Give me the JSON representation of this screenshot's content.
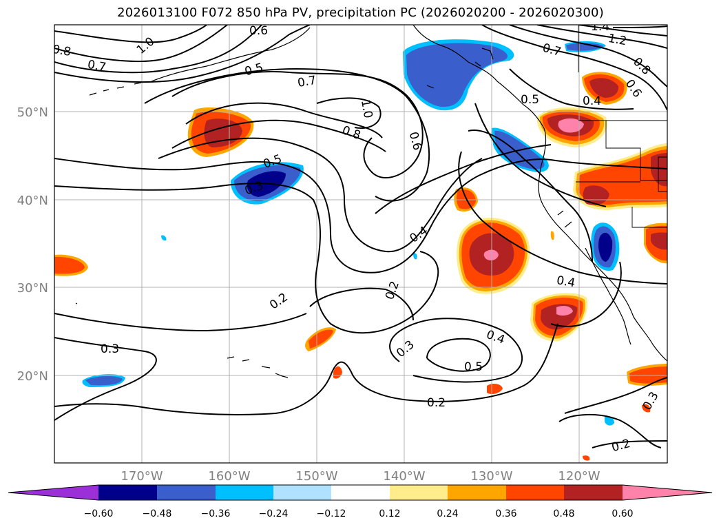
{
  "title": "2026013100 F072 850 hPa PV, precipitation PC (2026020200 - 2026020300)",
  "colors": {
    "purple": "#9b30d9",
    "navy": "#00008b",
    "mid_blue": "#3a5fcd",
    "sky_blue": "#00bfff",
    "light_blue": "#b0e2ff",
    "white": "#ffffff",
    "light_yellow": "#ffec8b",
    "orange": "#ffa500",
    "orange_red": "#ff4500",
    "firebrick": "#b22222",
    "pink": "#ff82ab"
  },
  "chart_data": {
    "type": "map-contour",
    "lat_labels": [
      "50°N",
      "40°N",
      "30°N",
      "20°N"
    ],
    "lon_labels": [
      "170°W",
      "160°W",
      "150°W",
      "140°W",
      "130°W",
      "120°W"
    ],
    "colorbar": {
      "ticks": [
        "−0.60",
        "−0.48",
        "−0.36",
        "−0.24",
        "−0.12",
        "0.12",
        "0.24",
        "0.36",
        "0.48",
        "0.60"
      ],
      "bins": [
        "purple",
        "navy",
        "mid_blue",
        "sky_blue",
        "light_blue",
        "white",
        "light_yellow",
        "orange",
        "orange_red",
        "firebrick",
        "pink"
      ]
    },
    "contour_labels": [
      "1.0",
      "0.6",
      "0.8",
      "0.7",
      "0.5",
      "0.7",
      "1.0",
      "0.8",
      "0.6",
      "0.5",
      "0.3",
      "0.4",
      "0.2",
      "0.2",
      "0.4",
      "0.3",
      "0.4",
      "0.5",
      "0.2",
      "0.3",
      "0.3",
      "0.2",
      "0.7",
      "1.2",
      "1.4",
      "0.8",
      "0.6",
      "0.4",
      "0.5"
    ]
  }
}
